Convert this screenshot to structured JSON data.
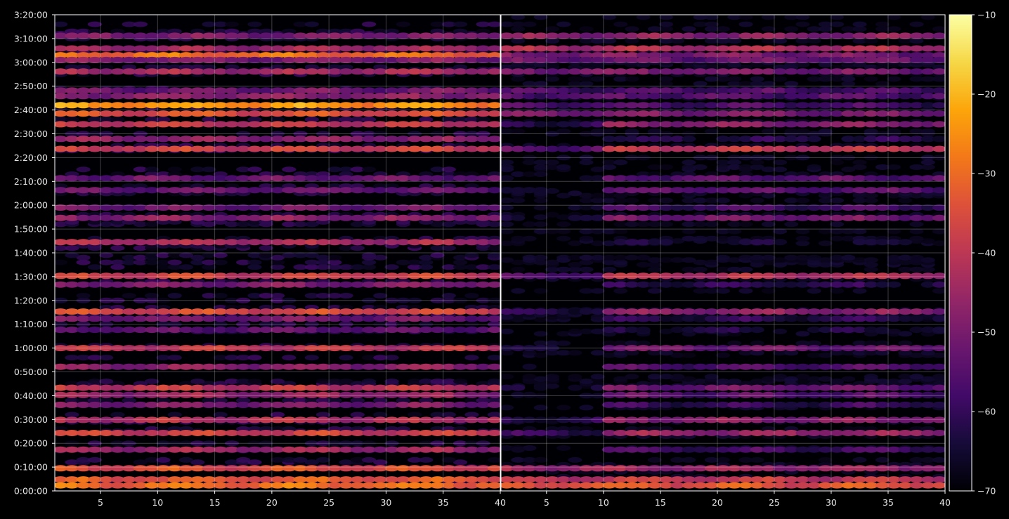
{
  "chart_data": {
    "type": "heatmap",
    "title": "",
    "xlabel": "",
    "ylabel": "",
    "background": "#000000",
    "colormap": "inferno",
    "grid": true,
    "panels": [
      {
        "name": "",
        "x_range": [
          1,
          40
        ],
        "xticks": [
          5,
          10,
          15,
          20,
          25,
          30,
          35,
          40
        ],
        "xtick_labels": [
          "5",
          "10",
          "15",
          "20",
          "25",
          "30",
          "35",
          "40"
        ]
      },
      {
        "name": "",
        "x_range": [
          1,
          40
        ],
        "xticks": [
          5,
          10,
          15,
          20,
          25,
          30,
          35,
          40
        ],
        "xtick_labels": [
          "5",
          "10",
          "15",
          "20",
          "25",
          "30",
          "35",
          "40"
        ]
      }
    ],
    "y_range_seconds": [
      0,
      12000
    ],
    "yticks_seconds": [
      0,
      600,
      1200,
      1800,
      2400,
      3000,
      3600,
      4200,
      4800,
      5400,
      6000,
      6600,
      7200,
      7800,
      8400,
      9000,
      9600,
      10200,
      10800,
      11400,
      12000
    ],
    "ytick_labels": [
      "0:00:00",
      "0:10:00",
      "0:20:00",
      "0:30:00",
      "0:40:00",
      "0:50:00",
      "1:00:00",
      "1:10:00",
      "1:20:00",
      "1:30:00",
      "1:40:00",
      "1:50:00",
      "2:00:00",
      "2:10:00",
      "2:20:00",
      "2:30:00",
      "2:40:00",
      "2:50:00",
      "3:00:00",
      "3:10:00",
      "3:20:00"
    ],
    "colorbar": {
      "range": [
        -70,
        -10
      ],
      "ticks": [
        -70,
        -60,
        -50,
        -40,
        -30,
        -20,
        -10
      ],
      "tick_labels": [
        "−70",
        "−60",
        "−50",
        "−40",
        "−30",
        "−20",
        "−10"
      ]
    },
    "bands": [
      {
        "t": 11470,
        "p1": -50,
        "p2": -48,
        "decay": 0.0,
        "phase": 0.3
      },
      {
        "t": 11150,
        "p1": -45,
        "p2": -43,
        "decay": 0.0,
        "phase": 1.1
      },
      {
        "t": 10980,
        "p1": -30,
        "p2": -50,
        "decay": 0.05,
        "phase": 2.2
      },
      {
        "t": 10860,
        "p1": -50,
        "p2": -53,
        "decay": 0.0,
        "phase": 0.7
      },
      {
        "t": 10570,
        "p1": -44,
        "p2": -50,
        "decay": 0.05,
        "phase": 1.9
      },
      {
        "t": 10090,
        "p1": -52,
        "p2": -57,
        "decay": 0.0,
        "phase": 0.4
      },
      {
        "t": 9950,
        "p1": -48,
        "p2": -56,
        "decay": 0.0,
        "phase": 2.6
      },
      {
        "t": 9720,
        "p1": -24,
        "p2": -57,
        "decay": 0.12,
        "phase": 1.4
      },
      {
        "t": 9510,
        "p1": -35,
        "p2": -50,
        "decay": 0.1,
        "phase": 0.9
      },
      {
        "t": 9240,
        "p1": -40,
        "p2": -48,
        "decay": 0.05,
        "phase": 2.1
      },
      {
        "t": 8870,
        "p1": -48,
        "p2": -63,
        "decay": 0.05,
        "phase": 0.2
      },
      {
        "t": 8620,
        "p1": -38,
        "p2": -40,
        "decay": 0.0,
        "phase": 1.7
      },
      {
        "t": 7880,
        "p1": -53,
        "p2": -55,
        "decay": 0.0,
        "phase": 2.9
      },
      {
        "t": 7580,
        "p1": -53,
        "p2": -55,
        "decay": 0.0,
        "phase": 0.6
      },
      {
        "t": 7140,
        "p1": -52,
        "p2": -58,
        "decay": 0.0,
        "phase": 1.5
      },
      {
        "t": 6880,
        "p1": -48,
        "p2": -51,
        "decay": 0.0,
        "phase": 2.3
      },
      {
        "t": 6270,
        "p1": -43,
        "p2": -66,
        "decay": 0.1,
        "phase": 0.8
      },
      {
        "t": 5420,
        "p1": -38,
        "p2": -42,
        "decay": 0.0,
        "phase": 1.2
      },
      {
        "t": 5200,
        "p1": -50,
        "p2": -62,
        "decay": 0.0,
        "phase": 2.5
      },
      {
        "t": 4520,
        "p1": -36,
        "p2": -48,
        "decay": 0.05,
        "phase": 0.5
      },
      {
        "t": 4340,
        "p1": -52,
        "p2": -62,
        "decay": 0.0,
        "phase": 1.8
      },
      {
        "t": 4060,
        "p1": -54,
        "p2": -65,
        "decay": 0.0,
        "phase": 2.7
      },
      {
        "t": 3600,
        "p1": -40,
        "p2": -52,
        "decay": 0.05,
        "phase": 0.1
      },
      {
        "t": 3130,
        "p1": -48,
        "p2": -56,
        "decay": 0.0,
        "phase": 1.3
      },
      {
        "t": 2600,
        "p1": -40,
        "p2": -52,
        "decay": 0.05,
        "phase": 2.0
      },
      {
        "t": 2420,
        "p1": -46,
        "p2": -55,
        "decay": 0.05,
        "phase": 0.9
      },
      {
        "t": 2170,
        "p1": -50,
        "p2": -60,
        "decay": 0.0,
        "phase": 1.6
      },
      {
        "t": 1790,
        "p1": -42,
        "p2": -48,
        "decay": 0.05,
        "phase": 2.4
      },
      {
        "t": 1460,
        "p1": -38,
        "p2": -46,
        "decay": 0.05,
        "phase": 0.3
      },
      {
        "t": 1040,
        "p1": -45,
        "p2": -58,
        "decay": 0.05,
        "phase": 1.0
      },
      {
        "t": 570,
        "p1": -35,
        "p2": -45,
        "decay": 0.05,
        "phase": 2.2
      },
      {
        "t": 290,
        "p1": -34,
        "p2": -40,
        "decay": 0.0,
        "phase": 0.7
      },
      {
        "t": 140,
        "p1": -30,
        "p2": -34,
        "decay": 0.0,
        "phase": 1.9
      }
    ]
  }
}
